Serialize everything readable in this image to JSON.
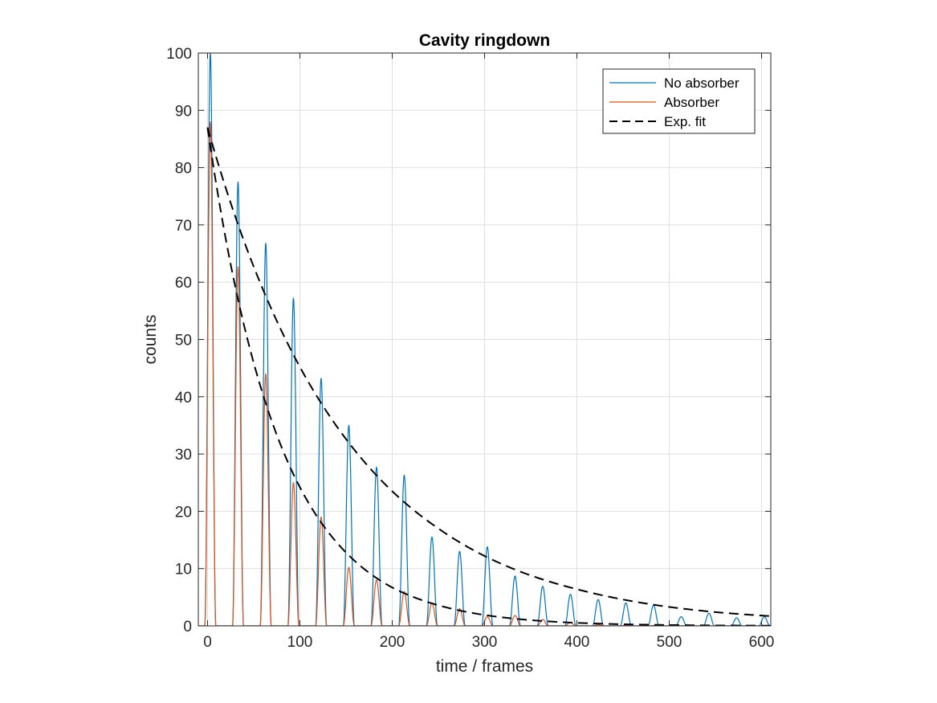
{
  "chart_data": {
    "type": "line",
    "title": "Cavity ringdown",
    "xlabel": "time / frames",
    "ylabel": "counts",
    "xlim": [
      -10,
      610
    ],
    "ylim": [
      0,
      100
    ],
    "xticks": [
      0,
      100,
      200,
      300,
      400,
      500,
      600
    ],
    "yticks": [
      0,
      10,
      20,
      30,
      40,
      50,
      60,
      70,
      80,
      90,
      100
    ],
    "grid": true,
    "legend_position": "top-right",
    "pulse_period": 30,
    "pulse_half_width": 6,
    "series": [
      {
        "name": "No absorber",
        "color": "#0072BD",
        "style": "solid",
        "peak_x": [
          3,
          33,
          63,
          93,
          123,
          153,
          183,
          213,
          243,
          273,
          303,
          333,
          363,
          393,
          423,
          453,
          483,
          513,
          543,
          573,
          603
        ],
        "peak_y": [
          100,
          77.5,
          66.8,
          57.2,
          43.2,
          35,
          27.7,
          26.3,
          15.5,
          13,
          13.8,
          8.7,
          6.9,
          5.5,
          4.6,
          4.0,
          3.6,
          1.6,
          2.2,
          1.4,
          1.6
        ]
      },
      {
        "name": "Absorber",
        "color": "#D95319",
        "style": "solid",
        "peak_x": [
          3,
          33,
          63,
          93,
          123,
          153,
          183,
          213,
          243,
          273,
          303,
          333,
          363,
          393,
          423,
          453,
          483,
          513,
          543,
          573,
          603
        ],
        "peak_y": [
          88,
          62.7,
          44,
          25,
          19,
          10.2,
          8,
          6,
          4,
          3,
          1.6,
          1.8,
          1.1,
          0.6,
          0.2,
          0.1,
          0.05,
          0.02,
          0.01,
          0.01,
          0.01
        ]
      },
      {
        "name": "Exp. fit",
        "color": "#000000",
        "style": "dashed",
        "curves": [
          {
            "x": [
              0,
              20,
              50,
              100,
              150,
              200,
              250,
              300,
              350,
              400,
              450,
              500,
              550,
              610
            ],
            "y": [
              87,
              76.3,
              62.7,
              45.2,
              32.6,
              23.5,
              17.0,
              12.2,
              8.8,
              6.4,
              4.6,
              3.3,
              2.4,
              1.7
            ]
          },
          {
            "x": [
              0,
              20,
              50,
              100,
              150,
              200,
              250,
              300,
              350,
              400,
              450,
              500,
              550,
              610
            ],
            "y": [
              87,
              67.3,
              45.9,
              24.2,
              12.8,
              6.7,
              3.6,
              1.9,
              1.0,
              0.53,
              0.28,
              0.15,
              0.08,
              0.04
            ]
          }
        ]
      }
    ]
  }
}
